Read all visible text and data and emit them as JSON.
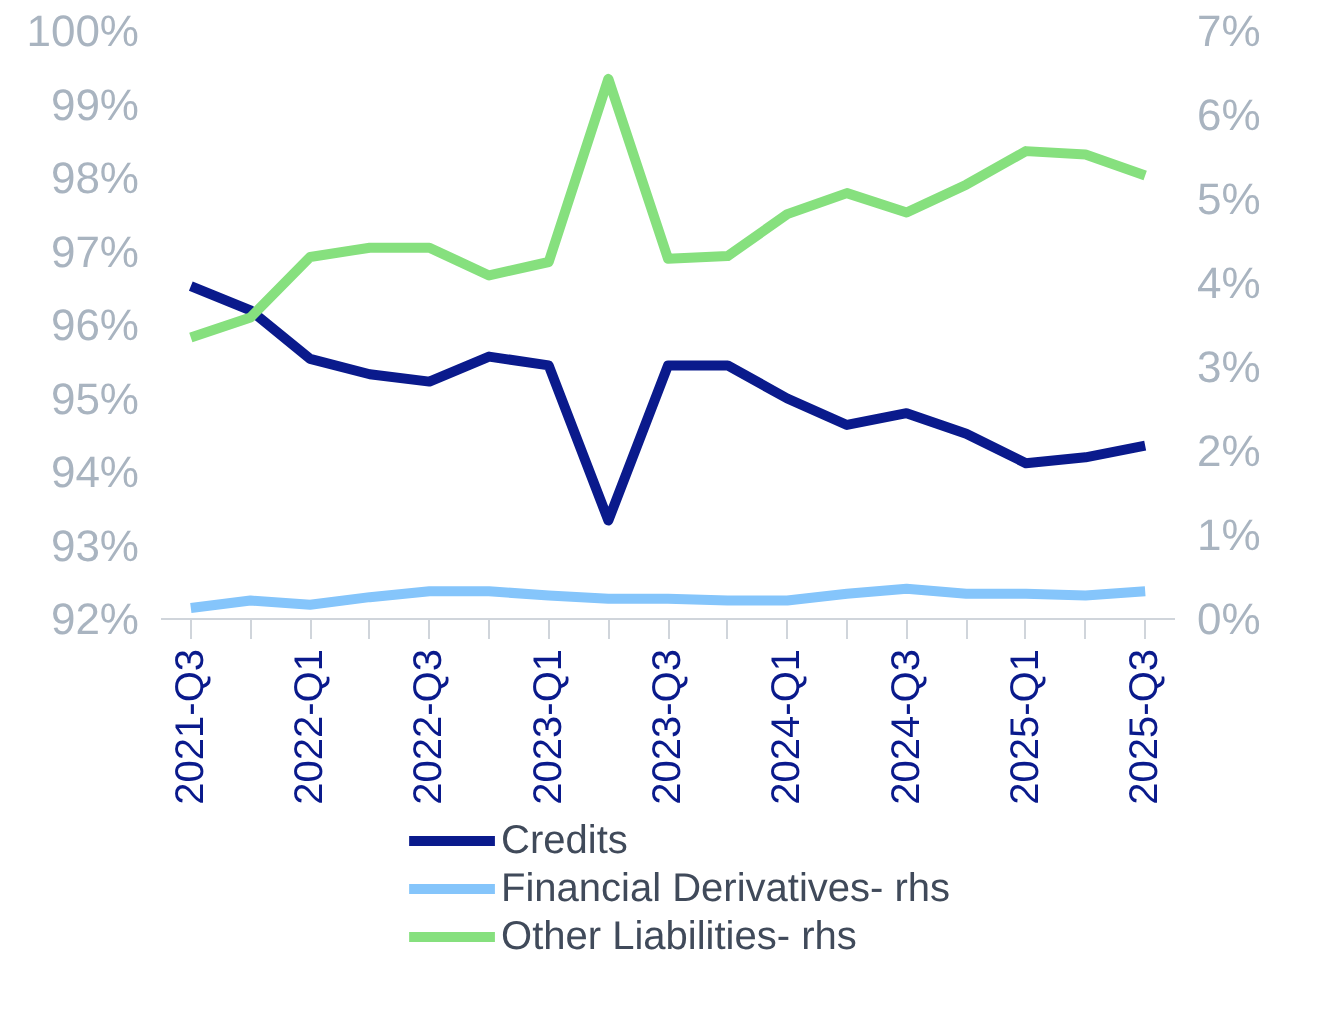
{
  "chart_data": {
    "type": "line",
    "categories": [
      "2021-Q3",
      null,
      "2022-Q1",
      null,
      "2022-Q3",
      null,
      "2023-Q1",
      null,
      "2023-Q3",
      null,
      "2024-Q1",
      null,
      "2024-Q3",
      null,
      "2025-Q1",
      null,
      "2025-Q3"
    ],
    "series": [
      {
        "name": "Credits",
        "color": "#0a1a8c",
        "values": [
          96.53,
          96.2,
          95.54,
          95.33,
          95.23,
          95.57,
          95.45,
          93.34,
          95.45,
          95.45,
          95.0,
          94.64,
          94.8,
          94.52,
          94.12,
          94.2,
          94.36
        ]
      },
      {
        "name": "Financial Derivatives- rhs",
        "color": "#85c5fb",
        "axis": "y2",
        "values": [
          0.13,
          0.22,
          0.17,
          0.26,
          0.33,
          0.33,
          0.28,
          0.24,
          0.24,
          0.22,
          0.22,
          0.3,
          0.36,
          0.3,
          0.3,
          0.28,
          0.33
        ]
      },
      {
        "name": "Other Liabilities- rhs",
        "color": "#86e07e",
        "axis": "y2",
        "values": [
          3.35,
          3.59,
          4.31,
          4.42,
          4.42,
          4.09,
          4.25,
          6.43,
          4.29,
          4.32,
          4.82,
          5.07,
          4.84,
          5.17,
          5.57,
          5.53,
          5.28
        ]
      }
    ],
    "ylim": [
      92,
      100
    ],
    "yticks": [
      {
        "value": 92,
        "label": "92%"
      },
      {
        "value": 93,
        "label": "93%"
      },
      {
        "value": 94,
        "label": "94%"
      },
      {
        "value": 95,
        "label": "95%"
      },
      {
        "value": 96,
        "label": "96%"
      },
      {
        "value": 97,
        "label": "97%"
      },
      {
        "value": 98,
        "label": "98%"
      },
      {
        "value": 99,
        "label": "99%"
      },
      {
        "value": 100,
        "label": "100%"
      }
    ],
    "y2lim": [
      0,
      7
    ],
    "y2ticks": [
      {
        "value": 0,
        "label": "0%"
      },
      {
        "value": 1,
        "label": "1%"
      },
      {
        "value": 2,
        "label": "2%"
      },
      {
        "value": 3,
        "label": "3%"
      },
      {
        "value": 4,
        "label": "4%"
      },
      {
        "value": 5,
        "label": "5%"
      },
      {
        "value": 6,
        "label": "6%"
      },
      {
        "value": 7,
        "label": "7%"
      }
    ],
    "grid": false,
    "legend": "bottom",
    "marker": "none",
    "line_style": "solid"
  }
}
